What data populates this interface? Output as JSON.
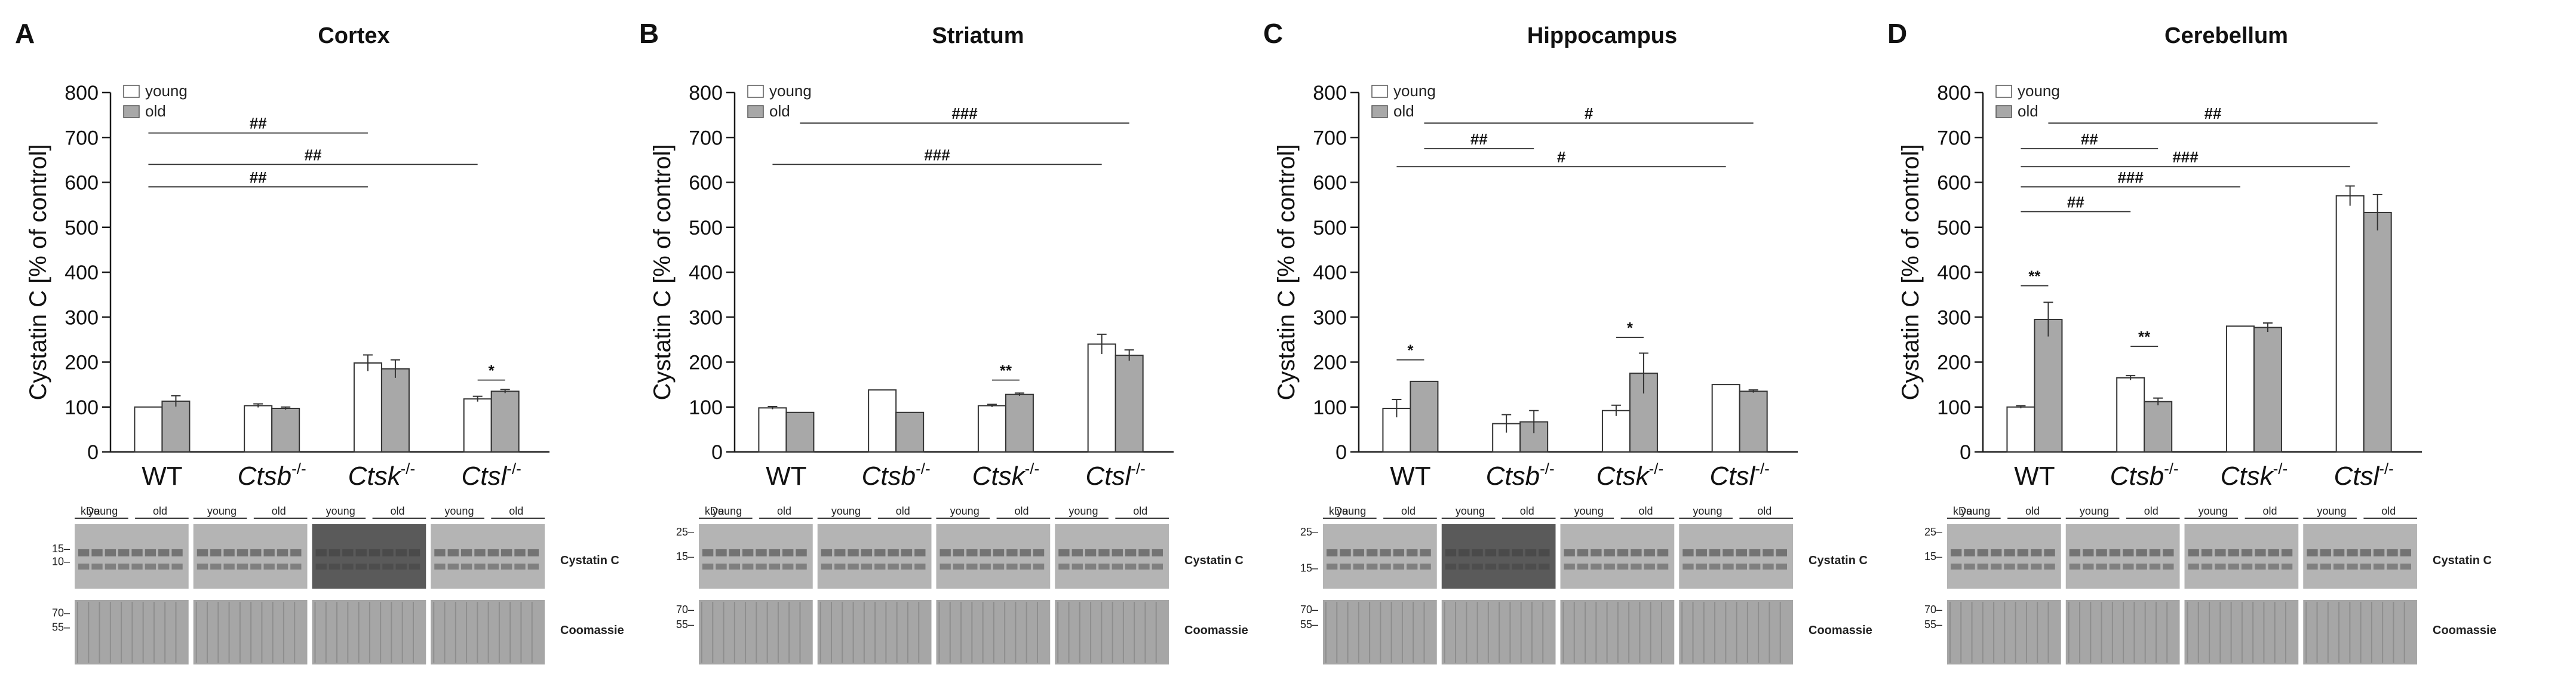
{
  "figure": {
    "ylabel": "Cystatin C [% of control]",
    "legend": [
      "young",
      "old"
    ],
    "blot_labels": {
      "kda": "kDa",
      "cystatin": "Cystatin C",
      "coomassie": "Coomassie",
      "young": "young",
      "old": "old"
    },
    "colors": {
      "young": "#ffffff",
      "old": "#a8a8a8",
      "axis": "#1a1a1a"
    }
  },
  "chart_data": [
    {
      "type": "bar",
      "letter": "A",
      "title": "Cortex",
      "ylabel": "Cystatin C [% of control]",
      "ylim": [
        0,
        800
      ],
      "yticks": [
        0,
        100,
        200,
        300,
        400,
        500,
        600,
        700,
        800
      ],
      "categories": [
        "WT",
        "Ctsb-/-",
        "Ctsk-/-",
        "Ctsl-/-"
      ],
      "series": [
        {
          "name": "young",
          "values": [
            100,
            103,
            198,
            118
          ],
          "errors": [
            0,
            4,
            18,
            6
          ]
        },
        {
          "name": "old",
          "values": [
            113,
            97,
            185,
            135
          ],
          "errors": [
            12,
            3,
            20,
            4
          ]
        }
      ],
      "lines": [
        {
          "a": [
            0,
            "y"
          ],
          "b": [
            2,
            "y"
          ],
          "y": 710,
          "label": "##"
        },
        {
          "a": [
            0,
            "y"
          ],
          "b": [
            3,
            "y"
          ],
          "y": 640,
          "label": "##"
        },
        {
          "a": [
            0,
            "y"
          ],
          "b": [
            2,
            "y"
          ],
          "y": 590,
          "label": "##"
        },
        {
          "a": [
            3,
            "y"
          ],
          "b": [
            3,
            "o"
          ],
          "y": 160,
          "label": "*"
        }
      ],
      "ladder": [
        [
          "15",
          "0.38"
        ],
        [
          "10",
          "0.58"
        ]
      ],
      "ladder2": [
        [
          "70",
          "0.2"
        ],
        [
          "55",
          "0.42"
        ]
      ]
    },
    {
      "type": "bar",
      "letter": "B",
      "title": "Striatum",
      "ylabel": "Cystatin C [% of control]",
      "ylim": [
        0,
        800
      ],
      "yticks": [
        0,
        100,
        200,
        300,
        400,
        500,
        600,
        700,
        800
      ],
      "categories": [
        "WT",
        "Ctsb-/-",
        "Ctsk-/-",
        "Ctsl-/-"
      ],
      "series": [
        {
          "name": "young",
          "values": [
            98,
            138,
            103,
            240
          ],
          "errors": [
            3,
            0,
            3,
            22
          ]
        },
        {
          "name": "old",
          "values": [
            88,
            88,
            128,
            215
          ],
          "errors": [
            0,
            0,
            3,
            12
          ]
        }
      ],
      "lines": [
        {
          "a": [
            0,
            "o"
          ],
          "b": [
            3,
            "o"
          ],
          "y": 732,
          "label": "###"
        },
        {
          "a": [
            0,
            "y"
          ],
          "b": [
            3,
            "y"
          ],
          "y": 640,
          "label": "###"
        },
        {
          "a": [
            2,
            "y"
          ],
          "b": [
            2,
            "o"
          ],
          "y": 160,
          "label": "**"
        }
      ],
      "ladder": [
        [
          "25",
          "0.12"
        ],
        [
          "15",
          "0.5"
        ]
      ],
      "ladder2": [
        [
          "70",
          "0.15"
        ],
        [
          "55",
          "0.38"
        ]
      ]
    },
    {
      "type": "bar",
      "letter": "C",
      "title": "Hippocampus",
      "ylabel": "Cystatin C [% of control]",
      "ylim": [
        0,
        800
      ],
      "yticks": [
        0,
        100,
        200,
        300,
        400,
        500,
        600,
        700,
        800
      ],
      "categories": [
        "WT",
        "Ctsb-/-",
        "Ctsk-/-",
        "Ctsl-/-"
      ],
      "series": [
        {
          "name": "young",
          "values": [
            97,
            63,
            92,
            150
          ],
          "errors": [
            20,
            20,
            12,
            0
          ]
        },
        {
          "name": "old",
          "values": [
            157,
            67,
            175,
            135
          ],
          "errors": [
            0,
            25,
            45,
            3
          ]
        }
      ],
      "lines": [
        {
          "a": [
            0,
            "o"
          ],
          "b": [
            3,
            "o"
          ],
          "y": 732,
          "label": "#"
        },
        {
          "a": [
            0,
            "o"
          ],
          "b": [
            1,
            "o"
          ],
          "y": 675,
          "label": "##"
        },
        {
          "a": [
            0,
            "y"
          ],
          "b": [
            3,
            "y"
          ],
          "y": 635,
          "label": "#"
        },
        {
          "a": [
            0,
            "y"
          ],
          "b": [
            0,
            "o"
          ],
          "y": 205,
          "label": "*"
        },
        {
          "a": [
            2,
            "y"
          ],
          "b": [
            2,
            "o"
          ],
          "y": 255,
          "label": "*"
        }
      ],
      "ladder": [
        [
          "25",
          "0.12"
        ],
        [
          "15",
          "0.68"
        ]
      ],
      "ladder2": [
        [
          "70",
          "0.15"
        ],
        [
          "55",
          "0.38"
        ]
      ]
    },
    {
      "type": "bar",
      "letter": "D",
      "title": "Cerebellum",
      "ylabel": "Cystatin C [% of control]",
      "ylim": [
        0,
        800
      ],
      "yticks": [
        0,
        100,
        200,
        300,
        400,
        500,
        600,
        700,
        800
      ],
      "categories": [
        "WT",
        "Ctsb-/-",
        "Ctsk-/-",
        "Ctsl-/-"
      ],
      "series": [
        {
          "name": "young",
          "values": [
            100,
            165,
            280,
            570
          ],
          "errors": [
            3,
            5,
            0,
            22
          ]
        },
        {
          "name": "old",
          "values": [
            295,
            112,
            277,
            533
          ],
          "errors": [
            38,
            8,
            10,
            40
          ]
        }
      ],
      "lines": [
        {
          "a": [
            0,
            "o"
          ],
          "b": [
            3,
            "o"
          ],
          "y": 732,
          "label": "##"
        },
        {
          "a": [
            0,
            "y"
          ],
          "b": [
            1,
            "o"
          ],
          "y": 675,
          "label": "##"
        },
        {
          "a": [
            0,
            "y"
          ],
          "b": [
            3,
            "y"
          ],
          "y": 635,
          "label": "###"
        },
        {
          "a": [
            0,
            "y"
          ],
          "b": [
            2,
            "y"
          ],
          "y": 590,
          "label": "###"
        },
        {
          "a": [
            0,
            "y"
          ],
          "b": [
            1,
            "y"
          ],
          "y": 535,
          "label": "##"
        },
        {
          "a": [
            0,
            "y"
          ],
          "b": [
            0,
            "o"
          ],
          "y": 370,
          "label": "**"
        },
        {
          "a": [
            1,
            "y"
          ],
          "b": [
            1,
            "o"
          ],
          "y": 235,
          "label": "**"
        }
      ],
      "ladder": [
        [
          "25",
          "0.12"
        ],
        [
          "15",
          "0.5"
        ]
      ],
      "ladder2": [
        [
          "70",
          "0.15"
        ],
        [
          "55",
          "0.38"
        ]
      ]
    }
  ]
}
